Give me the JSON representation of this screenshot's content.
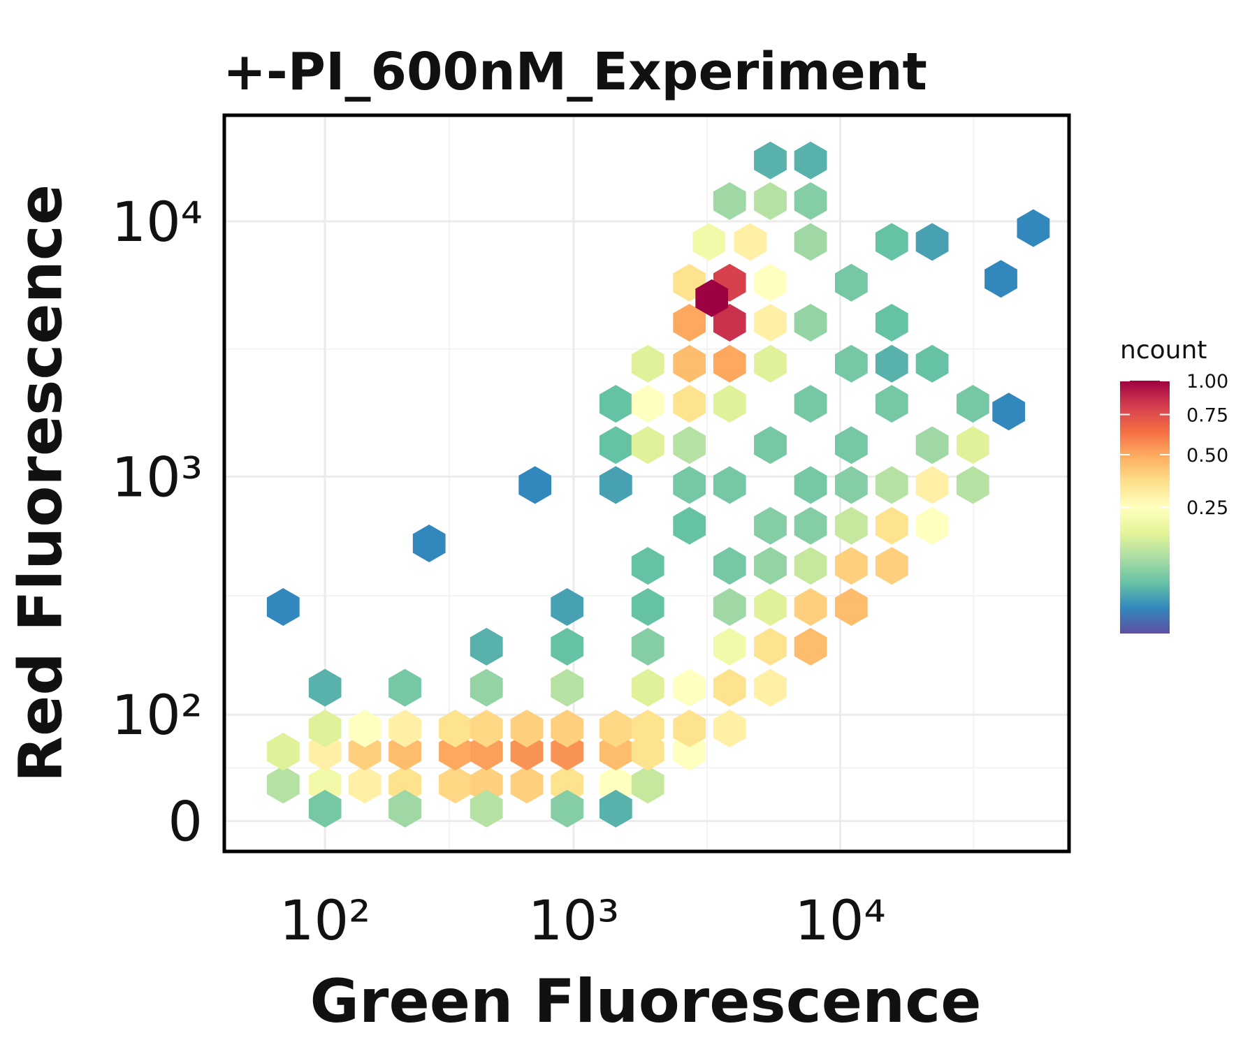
{
  "chart_data": {
    "type": "hexbin",
    "title": "+-PI_600nM_Experiment",
    "x_label": "Green Fluorescence",
    "y_label": "Red Fluorescence",
    "xscale": "asinh",
    "yscale": "asinh",
    "xlim": [
      8,
      72000
    ],
    "ylim": [
      -25,
      26000
    ],
    "xticks": [
      {
        "value": 100,
        "label": "10²"
      },
      {
        "value": 1000,
        "label": "10³"
      },
      {
        "value": 10000,
        "label": "10⁴"
      }
    ],
    "yticks": [
      0,
      {
        "value": 100,
        "label": "10²"
      },
      {
        "value": 1000,
        "label": "10³"
      },
      {
        "value": 10000,
        "label": "10⁴"
      }
    ],
    "grid": true,
    "x": [
      57,
      100,
      153,
      225,
      355,
      468,
      666,
      945,
      1440,
      1900,
      57,
      100,
      153,
      225,
      355,
      468,
      666,
      945,
      1440,
      1900,
      2720,
      100,
      153,
      225,
      355,
      468,
      666,
      945,
      1440,
      1900,
      2720,
      3850,
      100,
      225,
      468,
      945,
      1440,
      100,
      225,
      468,
      945,
      1900,
      2720,
      3850,
      5470,
      468,
      945,
      1900,
      3850,
      5470,
      7740,
      945,
      1900,
      3850,
      5470,
      7740,
      11000,
      1900,
      3850,
      5470,
      7740,
      11000,
      15600,
      2720,
      5470,
      7740,
      11000,
      15600,
      22100,
      1440,
      2720,
      3850,
      7740,
      11000,
      15600,
      22100,
      31400,
      1440,
      1900,
      2720,
      5470,
      11000,
      22100,
      31400,
      1440,
      1900,
      2720,
      3850,
      7740,
      15600,
      31400,
      1900,
      2720,
      3850,
      5470,
      11000,
      22100,
      2720,
      3850,
      5470,
      7740,
      15600,
      2720,
      3850,
      5470,
      11000,
      3220,
      4600,
      7740,
      15600,
      3850,
      5470,
      7740,
      5470,
      7740,
      3300,
      57,
      281,
      715,
      52900,
      42800,
      40000,
      22100,
      15600
    ],
    "y": [
      30,
      30,
      30,
      30,
      30,
      30,
      30,
      30,
      30,
      30,
      60,
      60,
      60,
      60,
      60,
      60,
      60,
      60,
      60,
      60,
      60,
      84,
      84,
      84,
      84,
      84,
      84,
      84,
      84,
      84,
      84,
      84,
      10,
      10,
      10,
      10,
      10,
      136,
      136,
      136,
      136,
      136,
      136,
      136,
      136,
      207,
      207,
      207,
      207,
      207,
      207,
      303,
      303,
      303,
      303,
      303,
      303,
      444,
      444,
      444,
      444,
      444,
      444,
      640,
      640,
      640,
      640,
      640,
      640,
      927,
      927,
      927,
      927,
      927,
      927,
      927,
      927,
      1330,
      1330,
      1330,
      1330,
      1330,
      1330,
      1330,
      1930,
      1930,
      1930,
      1930,
      1930,
      1930,
      1930,
      2770,
      2770,
      2770,
      2770,
      2770,
      2770,
      4010,
      4010,
      4010,
      4010,
      4010,
      5750,
      5750,
      5750,
      5750,
      8300,
      8300,
      8300,
      8300,
      12000,
      12000,
      12000,
      17300,
      17300,
      5000,
      303,
      545,
      927,
      9400,
      1800,
      5950,
      8300,
      2770
    ],
    "values": [
      0.1,
      0.2,
      0.3,
      0.35,
      0.38,
      0.4,
      0.4,
      0.35,
      0.25,
      0.12,
      0.15,
      0.3,
      0.4,
      0.45,
      0.5,
      0.52,
      0.55,
      0.55,
      0.45,
      0.35,
      0.25,
      0.15,
      0.25,
      0.3,
      0.35,
      0.38,
      0.4,
      0.4,
      0.38,
      0.35,
      0.35,
      0.3,
      0.05,
      0.08,
      0.1,
      0.06,
      0.03,
      0.03,
      0.05,
      0.07,
      0.1,
      0.15,
      0.25,
      0.35,
      0.3,
      0.03,
      0.04,
      0.06,
      0.2,
      0.35,
      0.45,
      0.02,
      0.04,
      0.08,
      0.15,
      0.4,
      0.45,
      0.04,
      0.05,
      0.07,
      0.12,
      0.4,
      0.4,
      0.04,
      0.06,
      0.06,
      0.12,
      0.35,
      0.25,
      0.02,
      0.05,
      0.05,
      0.05,
      0.06,
      0.1,
      0.3,
      0.1,
      0.04,
      0.15,
      0.1,
      0.05,
      0.05,
      0.08,
      0.15,
      0.04,
      0.25,
      0.35,
      0.15,
      0.05,
      0.05,
      0.05,
      0.15,
      0.45,
      0.5,
      0.15,
      0.05,
      0.04,
      0.5,
      0.85,
      0.3,
      0.07,
      0.04,
      0.35,
      0.8,
      0.25,
      0.05,
      0.2,
      0.3,
      0.08,
      0.04,
      0.08,
      0.1,
      0.06,
      0.03,
      0.03,
      1.0,
      0.01,
      0.01,
      0.01,
      0.01,
      0.01,
      0.01,
      0.02,
      0.03
    ],
    "color_scale": {
      "title": "ncount",
      "transform": "sqrt",
      "limits": [
        0,
        1
      ],
      "ticks": [
        {
          "value": 1,
          "label": "1.00"
        },
        {
          "value": 0.75,
          "label": "0.75"
        },
        {
          "value": 0.5,
          "label": "0.50"
        },
        {
          "value": 0.25,
          "label": "0.25"
        }
      ],
      "palette": [
        "#5e4fa2",
        "#3288bd",
        "#66c2a5",
        "#abdda4",
        "#e6f598",
        "#ffffbf",
        "#fee08b",
        "#fdae61",
        "#f46d43",
        "#d53e4f",
        "#9e0142"
      ]
    }
  }
}
